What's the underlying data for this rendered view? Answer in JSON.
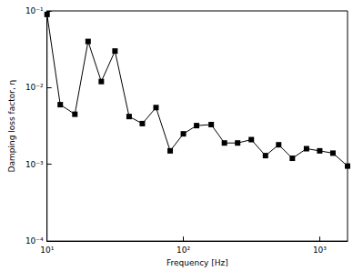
{
  "chart_data": {
    "type": "line",
    "xlabel": "Frequency [Hz]",
    "ylabel": "Damping loss factor, η",
    "log": true,
    "grid": false,
    "color": "#000000",
    "marker": "square",
    "line_style": "solid",
    "x": [
      10,
      12.5,
      16,
      20,
      25,
      31.5,
      40,
      50,
      63,
      80,
      100,
      125,
      160,
      200,
      250,
      315,
      400,
      500,
      630,
      800,
      1000,
      1250,
      1600
    ],
    "values": [
      0.09,
      0.006,
      0.0045,
      0.04,
      0.012,
      0.03,
      0.0042,
      0.0034,
      0.0055,
      0.0015,
      0.0025,
      0.0032,
      0.0033,
      0.0019,
      0.0019,
      0.0021,
      0.0013,
      0.0018,
      0.0012,
      0.0016,
      0.0015,
      0.0014,
      0.00095
    ],
    "xlim": [
      10,
      1600
    ],
    "xticks": [
      {
        "value": 10,
        "label": "10¹"
      },
      {
        "value": 100,
        "label": "10²"
      },
      {
        "value": 1000,
        "label": "10³"
      }
    ],
    "ylim": [
      0.0001,
      0.1
    ],
    "yticks": [
      {
        "value": 0.0001,
        "label": "10⁻⁴"
      },
      {
        "value": 0.001,
        "label": "10⁻³"
      },
      {
        "value": 0.01,
        "label": "10⁻²"
      },
      {
        "value": 0.1,
        "label": "10⁻¹"
      }
    ]
  }
}
